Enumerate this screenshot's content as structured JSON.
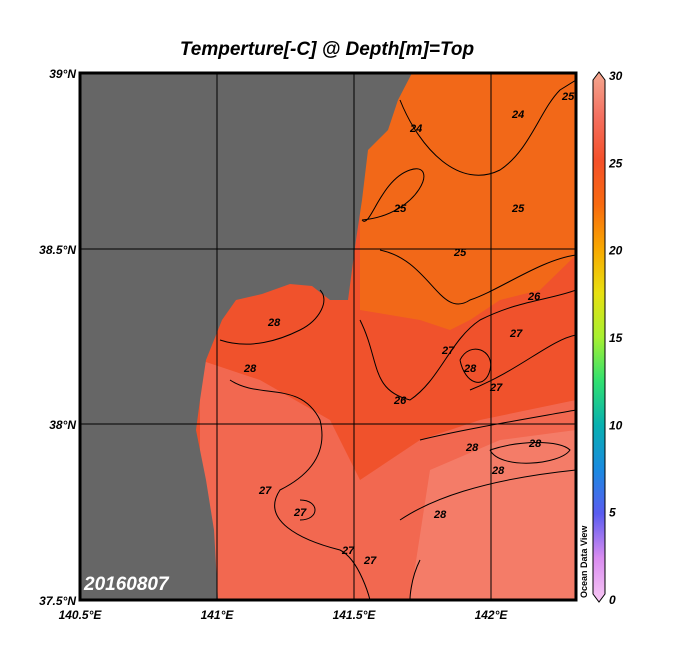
{
  "title": "Temperture[-C] @ Depth[m]=Top",
  "date_label": "20160807",
  "watermark": "Ocean Data View",
  "lat_ticks": [
    "39°N",
    "38.5°N",
    "38°N",
    "37.5°N"
  ],
  "lon_ticks": [
    "140.5°E",
    "141°E",
    "141.5°E",
    "142°E"
  ],
  "colorbar": {
    "min": 0,
    "max": 30,
    "ticks": [
      "0",
      "5",
      "10",
      "15",
      "20",
      "25",
      "30"
    ],
    "colors": [
      "#f8c8f4",
      "#d98cf0",
      "#5a5cf0",
      "#1a8ae0",
      "#08b0b0",
      "#30e070",
      "#a8f030",
      "#e8e010",
      "#f8a800",
      "#f86a10",
      "#f4502a",
      "#f47060",
      "#f4a890"
    ]
  },
  "contour_labels": [
    "24",
    "24",
    "25",
    "25",
    "25",
    "25",
    "26",
    "26",
    "27",
    "27",
    "27",
    "28",
    "28",
    "28",
    "28",
    "28",
    "28",
    "28",
    "27",
    "27",
    "27",
    "27"
  ],
  "colors": {
    "land": "#666666",
    "sea_north": "#f26818",
    "sea_mid": "#f0522c",
    "sea_south": "#f26850",
    "sea_southeast": "#f47c68"
  }
}
